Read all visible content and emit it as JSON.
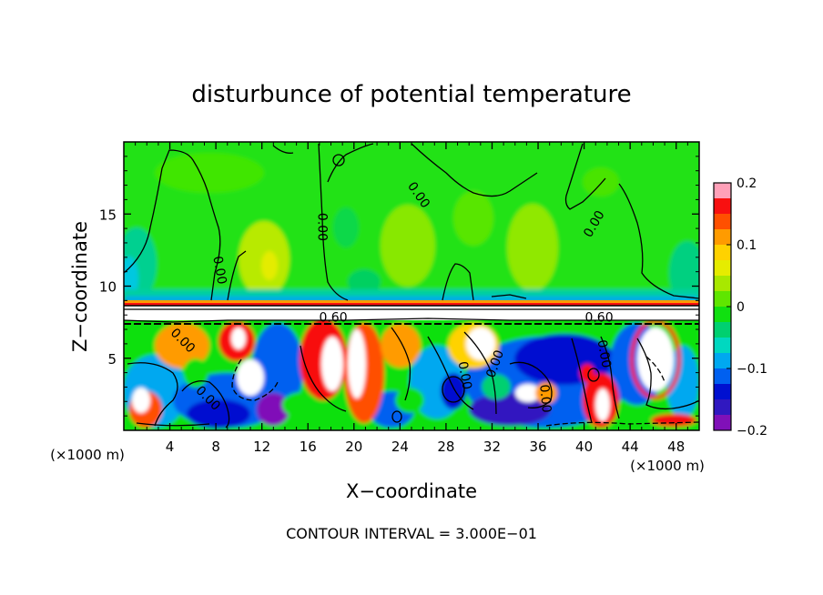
{
  "chart_data": {
    "type": "heatmap",
    "title": "disturbunce of potential temperature",
    "xlabel": "X−coordinate",
    "ylabel": "Z−coordinate",
    "x_unit_label_left": "(×1000 m)",
    "x_unit_label_right": "(×1000 m)",
    "footer": "CONTOUR INTERVAL = 3.000E−01",
    "xlim": [
      0,
      50
    ],
    "ylim": [
      0,
      20
    ],
    "x_ticks": [
      4,
      8,
      12,
      16,
      20,
      24,
      28,
      32,
      36,
      40,
      44,
      48
    ],
    "x_tick_labels": [
      "4",
      "8",
      "12",
      "16",
      "20",
      "24",
      "28",
      "32",
      "36",
      "40",
      "44",
      "48"
    ],
    "y_ticks": [
      5,
      10,
      15
    ],
    "y_tick_labels": [
      "5",
      "10",
      "15"
    ],
    "colorbar": {
      "range": [
        -0.2,
        0.2
      ],
      "tick_values": [
        0.2,
        0.1,
        0,
        -0.1,
        -0.2
      ],
      "tick_labels": [
        "0.2",
        "0.1",
        "0",
        "−0.1",
        "−0.2"
      ],
      "colors": [
        "#ffa0b8",
        "#f81010",
        "#ff5000",
        "#ff9b00",
        "#ffd200",
        "#e6ec00",
        "#a8e800",
        "#5fe600",
        "#10e010",
        "#00d070",
        "#00d8c0",
        "#00a8f0",
        "#0060f0",
        "#0010d0",
        "#3018c0",
        "#8010b8"
      ]
    },
    "contour_labels": [
      {
        "text": "0.60",
        "x": 18.2,
        "z": 7.8,
        "rotate": 0
      },
      {
        "text": "0.60",
        "x": 41.3,
        "z": 7.8,
        "rotate": 0
      },
      {
        "text": "0.00",
        "x": 25.6,
        "z": 16.3,
        "rotate": 55
      },
      {
        "text": "0.00",
        "x": 17.2,
        "z": 14.1,
        "rotate": 90
      },
      {
        "text": "0.00",
        "x": 40.9,
        "z": 14.3,
        "rotate": -60
      },
      {
        "text": "0.00",
        "x": 8.3,
        "z": 11.1,
        "rotate": 80
      },
      {
        "text": "0.00",
        "x": 5.1,
        "z": 6.2,
        "rotate": 45
      },
      {
        "text": "0.00",
        "x": 29.6,
        "z": 3.8,
        "rotate": 80
      },
      {
        "text": "0.00",
        "x": 32.3,
        "z": 4.6,
        "rotate": -70
      },
      {
        "text": "0.00",
        "x": 36.6,
        "z": 2.2,
        "rotate": 85
      },
      {
        "text": "0.00",
        "x": 41.7,
        "z": 5.3,
        "rotate": 80
      },
      {
        "text": "0.00",
        "x": 7.3,
        "z": 2.2,
        "rotate": 45
      }
    ]
  }
}
